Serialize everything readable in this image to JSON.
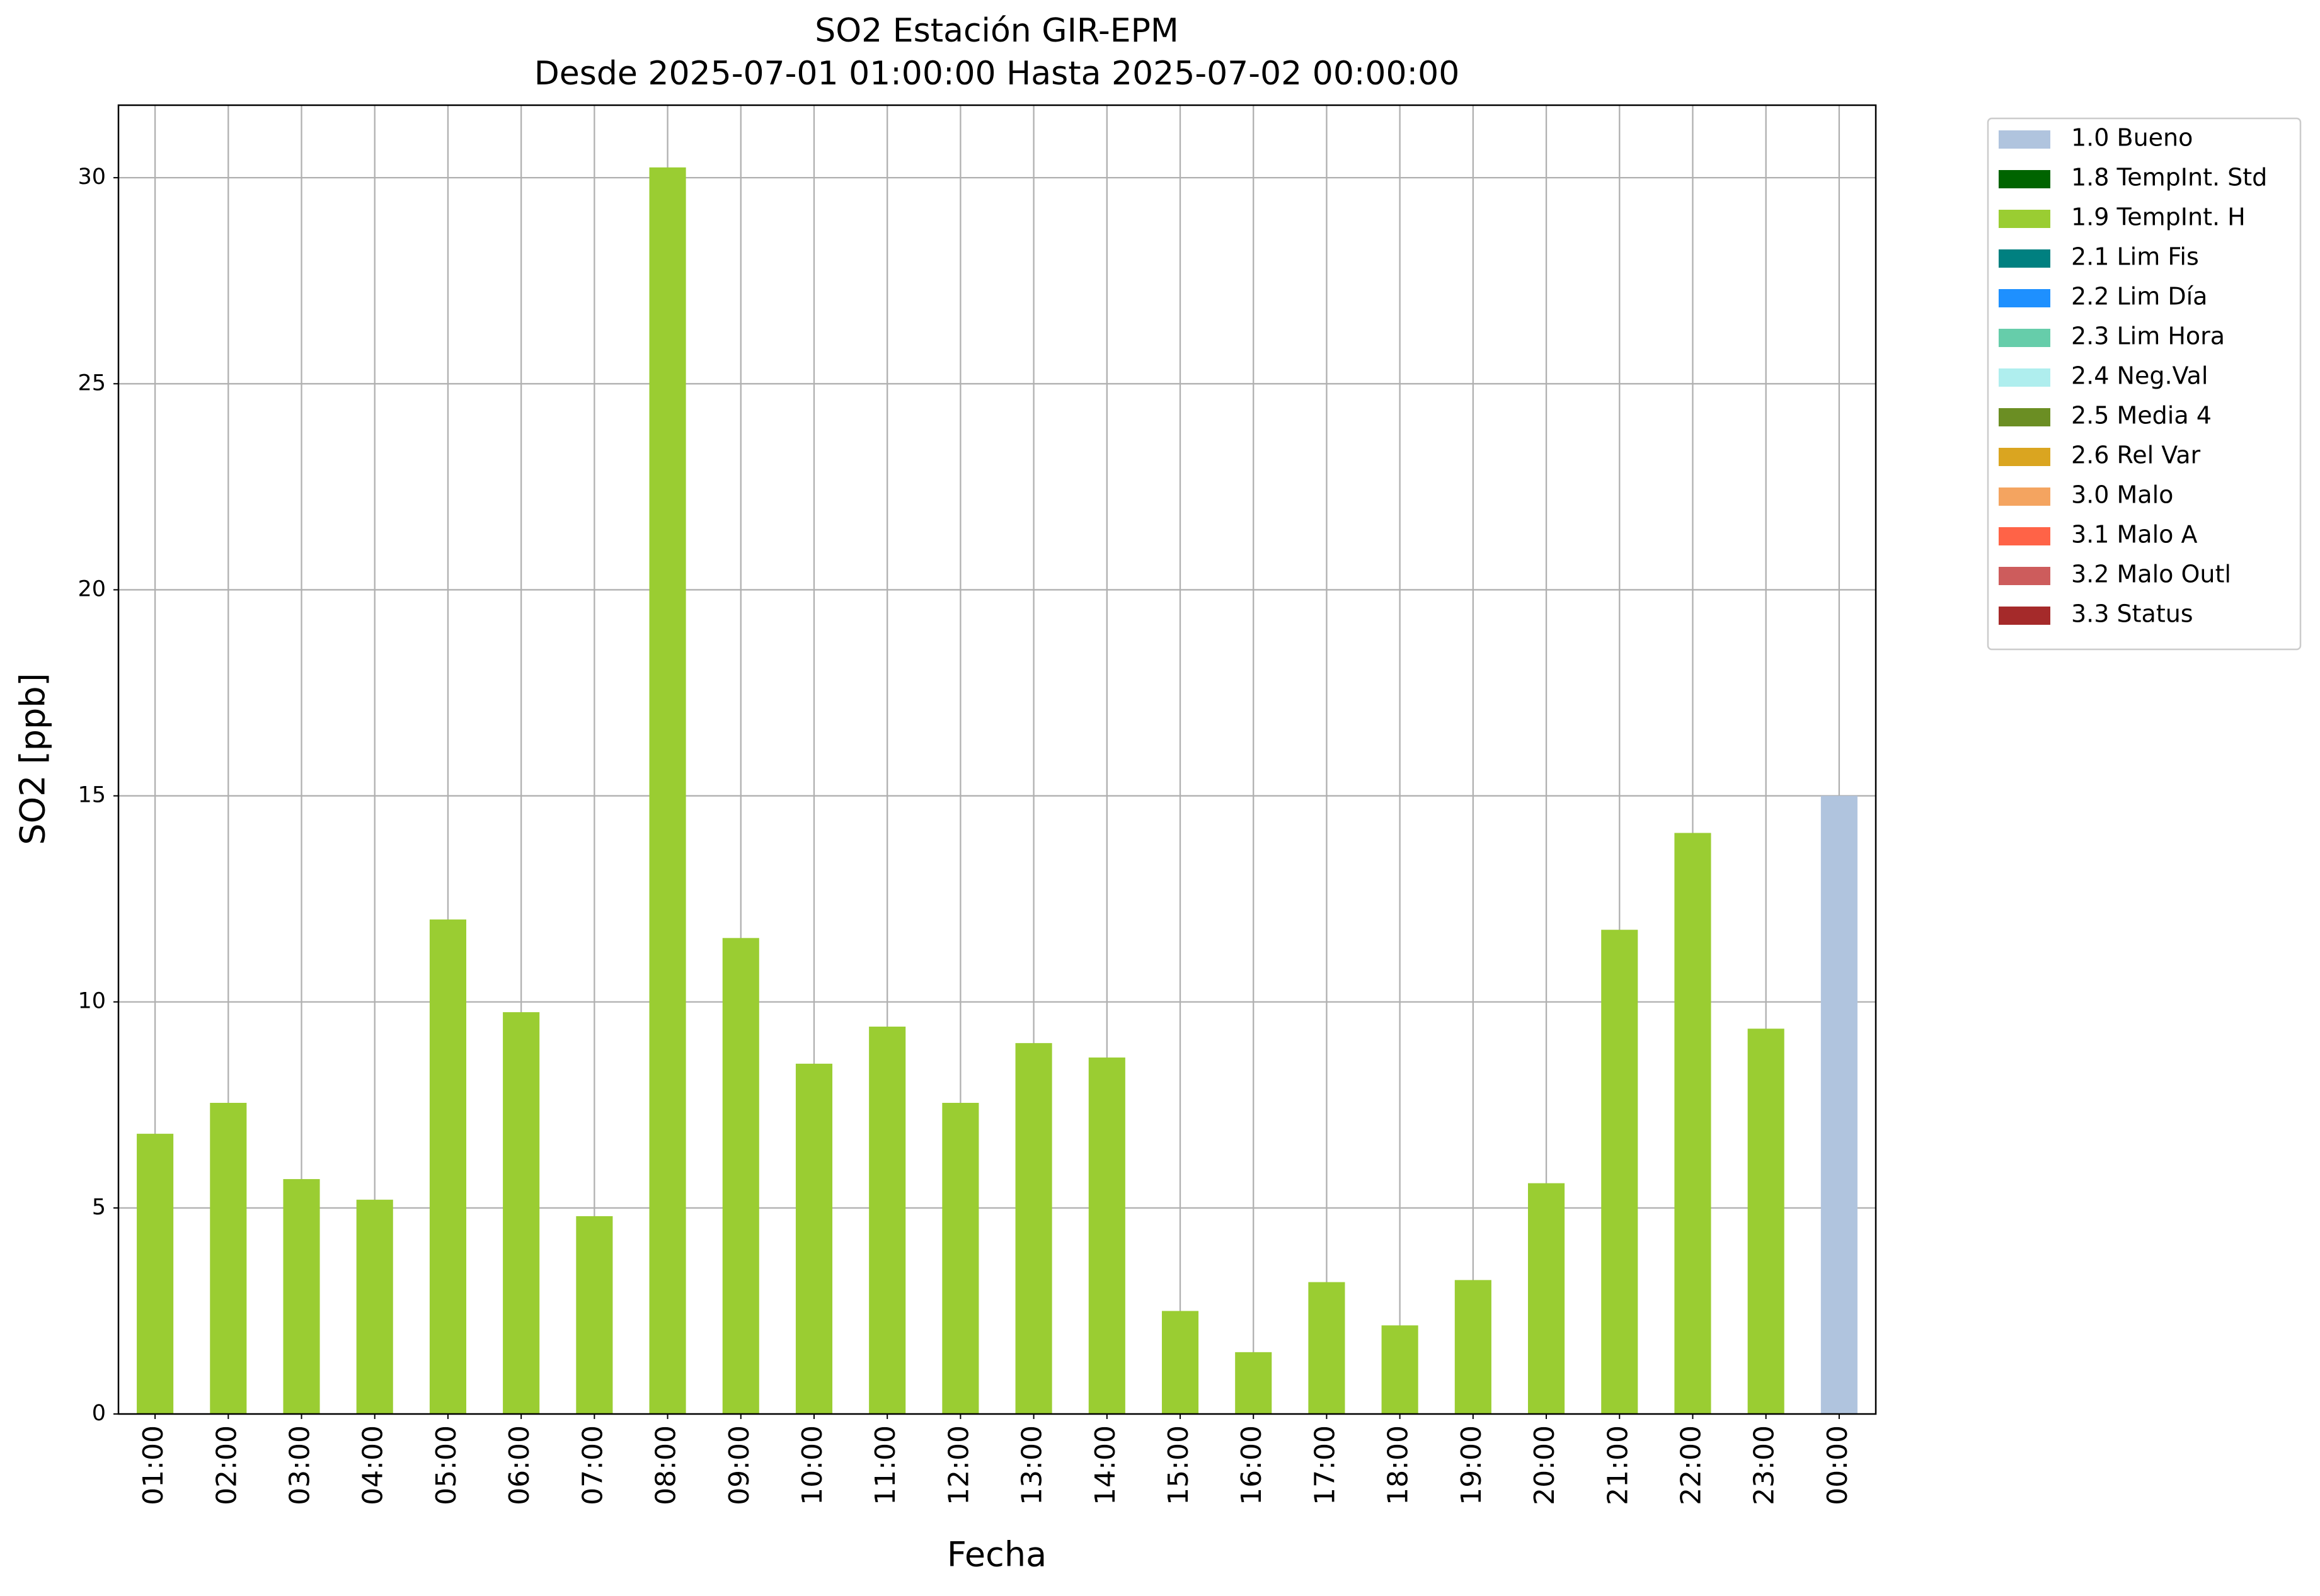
{
  "chart_data": {
    "type": "stacked_bar",
    "title": "SO2 Estación GIR-EPM",
    "subtitle": "Desde 2025-07-01 01:00:00 Hasta 2025-07-02 00:00:00",
    "x_label": "Fecha",
    "y_label": "SO2 [ppb]",
    "categories": [
      "01:00",
      "02:00",
      "03:00",
      "04:00",
      "05:00",
      "06:00",
      "07:00",
      "08:00",
      "09:00",
      "10:00",
      "11:00",
      "12:00",
      "13:00",
      "14:00",
      "15:00",
      "16:00",
      "17:00",
      "18:00",
      "19:00",
      "20:00",
      "21:00",
      "22:00",
      "23:00",
      "00:00"
    ],
    "series": [
      {
        "name": "1.0 Bueno",
        "color": "#b0c4de",
        "values": [
          null,
          null,
          null,
          null,
          null,
          null,
          null,
          null,
          null,
          null,
          null,
          null,
          null,
          null,
          null,
          null,
          null,
          null,
          null,
          null,
          null,
          null,
          null,
          15
        ]
      },
      {
        "name": "1.8 TempInt. Std",
        "color": "#006400",
        "values": [
          null,
          null,
          null,
          null,
          null,
          null,
          null,
          null,
          null,
          null,
          null,
          null,
          null,
          null,
          null,
          null,
          null,
          null,
          null,
          null,
          null,
          null,
          null,
          null
        ]
      },
      {
        "name": "1.9 TempInt. H",
        "color": "#9acd32",
        "values": [
          6.8,
          7.55,
          5.7,
          5.2,
          12.0,
          9.75,
          4.8,
          30.25,
          11.55,
          8.5,
          9.4,
          7.55,
          9.0,
          8.65,
          2.5,
          1.5,
          3.2,
          2.15,
          3.25,
          5.6,
          11.75,
          14.1,
          9.35,
          null
        ]
      },
      {
        "name": "2.1 Lim Fis",
        "color": "#008080",
        "values": [
          null,
          null,
          null,
          null,
          null,
          null,
          null,
          null,
          null,
          null,
          null,
          null,
          null,
          null,
          null,
          null,
          null,
          null,
          null,
          null,
          null,
          null,
          null,
          null
        ]
      },
      {
        "name": "2.2 Lim Día",
        "color": "#1e90ff",
        "values": [
          null,
          null,
          null,
          null,
          null,
          null,
          null,
          null,
          null,
          null,
          null,
          null,
          null,
          null,
          null,
          null,
          null,
          null,
          null,
          null,
          null,
          null,
          null,
          null
        ]
      },
      {
        "name": "2.3 Lim Hora",
        "color": "#66cdaa",
        "values": [
          null,
          null,
          null,
          null,
          null,
          null,
          null,
          null,
          null,
          null,
          null,
          null,
          null,
          null,
          null,
          null,
          null,
          null,
          null,
          null,
          null,
          null,
          null,
          null
        ]
      },
      {
        "name": "2.4 Neg.Val",
        "color": "#afeeee",
        "values": [
          null,
          null,
          null,
          null,
          null,
          null,
          null,
          null,
          null,
          null,
          null,
          null,
          null,
          null,
          null,
          null,
          null,
          null,
          null,
          null,
          null,
          null,
          null,
          null
        ]
      },
      {
        "name": "2.5 Media 4",
        "color": "#6b8e23",
        "values": [
          null,
          null,
          null,
          null,
          null,
          null,
          null,
          null,
          null,
          null,
          null,
          null,
          null,
          null,
          null,
          null,
          null,
          null,
          null,
          null,
          null,
          null,
          null,
          null
        ]
      },
      {
        "name": "2.6 Rel Var",
        "color": "#daa520",
        "values": [
          null,
          null,
          null,
          null,
          null,
          null,
          null,
          null,
          null,
          null,
          null,
          null,
          null,
          null,
          null,
          null,
          null,
          null,
          null,
          null,
          null,
          null,
          null,
          null
        ]
      },
      {
        "name": "3.0 Malo",
        "color": "#f4a460",
        "values": [
          null,
          null,
          null,
          null,
          null,
          null,
          null,
          null,
          null,
          null,
          null,
          null,
          null,
          null,
          null,
          null,
          null,
          null,
          null,
          null,
          null,
          null,
          null,
          null
        ]
      },
      {
        "name": "3.1 Malo A",
        "color": "#ff6347",
        "values": [
          null,
          null,
          null,
          null,
          null,
          null,
          null,
          null,
          null,
          null,
          null,
          null,
          null,
          null,
          null,
          null,
          null,
          null,
          null,
          null,
          null,
          null,
          null,
          null
        ]
      },
      {
        "name": "3.2 Malo Outl",
        "color": "#cd5c5c",
        "values": [
          null,
          null,
          null,
          null,
          null,
          null,
          null,
          null,
          null,
          null,
          null,
          null,
          null,
          null,
          null,
          null,
          null,
          null,
          null,
          null,
          null,
          null,
          null,
          null
        ]
      },
      {
        "name": "3.3 Status",
        "color": "#a52a2a",
        "values": [
          null,
          null,
          null,
          null,
          null,
          null,
          null,
          null,
          null,
          null,
          null,
          null,
          null,
          null,
          null,
          null,
          null,
          null,
          null,
          null,
          null,
          null,
          null,
          null
        ]
      }
    ],
    "ylim": [
      0,
      31.76
    ],
    "yticks": [
      0,
      5,
      10,
      15,
      20,
      25,
      30
    ],
    "grid": true,
    "legend": "outside-right"
  }
}
